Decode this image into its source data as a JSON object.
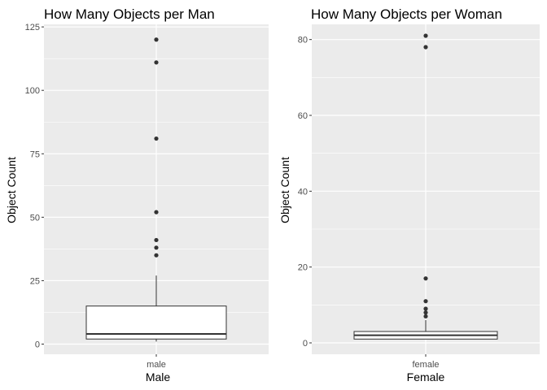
{
  "chart_data": [
    {
      "type": "box",
      "title": "How Many Objects per Man",
      "xlabel": "Male",
      "ylabel": "Object Count",
      "categories": [
        "male"
      ],
      "ylim": [
        -4,
        126
      ],
      "yticks": [
        0,
        25,
        50,
        75,
        100,
        125
      ],
      "box": {
        "q1": 2,
        "median": 4,
        "q3": 15,
        "whisker_low": 1,
        "whisker_high": 27
      },
      "outliers": [
        35,
        38,
        41,
        52,
        81,
        111,
        120
      ],
      "grid": true
    },
    {
      "type": "box",
      "title": "How Many Objects per Woman",
      "xlabel": "Female",
      "ylabel": "Object Count",
      "categories": [
        "female"
      ],
      "ylim": [
        -3,
        84
      ],
      "yticks": [
        0,
        20,
        40,
        60,
        80
      ],
      "box": {
        "q1": 1,
        "median": 2,
        "q3": 3,
        "whisker_low": 1,
        "whisker_high": 6
      },
      "outliers": [
        7,
        8,
        9,
        11,
        17,
        78,
        81
      ],
      "grid": true
    }
  ],
  "colors": {
    "panel_background": "#ebebeb",
    "grid_major": "#ffffff",
    "box_fill": "#ffffff",
    "box_line": "#333333",
    "outlier": "#333333"
  }
}
